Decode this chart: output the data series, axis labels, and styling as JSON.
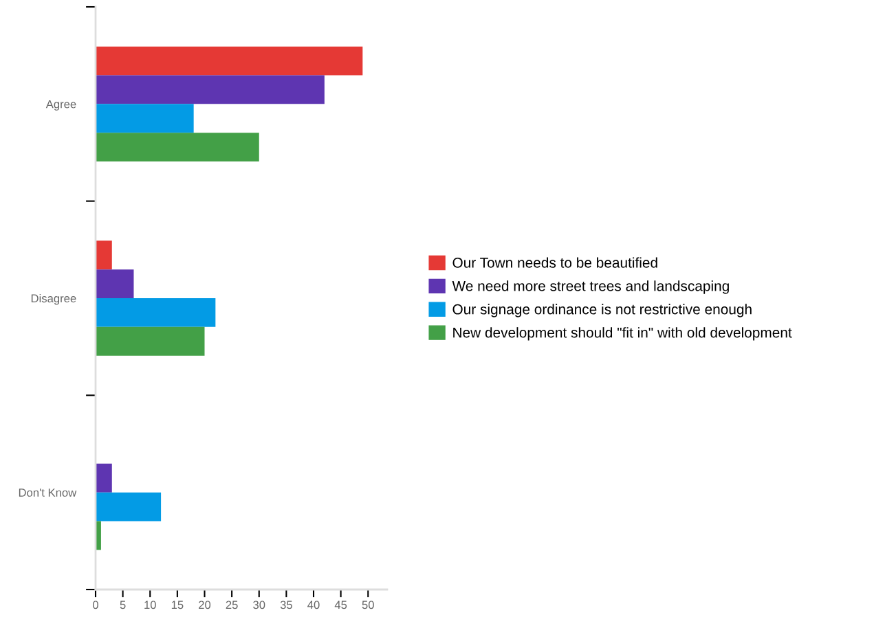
{
  "chart_data": {
    "type": "bar",
    "orientation": "horizontal",
    "categories": [
      "Agree",
      "Disagree",
      "Don't Know"
    ],
    "series": [
      {
        "name": "Our Town needs to be beautified",
        "color": "#e53935",
        "values": [
          49,
          3,
          0
        ]
      },
      {
        "name": "We need more street trees and landscaping",
        "color": "#5e35b1",
        "values": [
          42,
          7,
          3
        ]
      },
      {
        "name": "Our signage ordinance is not restrictive enough",
        "color": "#039be5",
        "values": [
          18,
          22,
          12
        ]
      },
      {
        "name": "New development should \"fit in\" with old development",
        "color": "#43a047",
        "values": [
          30,
          20,
          1
        ]
      }
    ],
    "xlim": [
      0,
      53.5
    ],
    "xticks": [
      0,
      5,
      10,
      15,
      20,
      25,
      30,
      35,
      40,
      45,
      50
    ],
    "grid": false,
    "legend": "right"
  }
}
